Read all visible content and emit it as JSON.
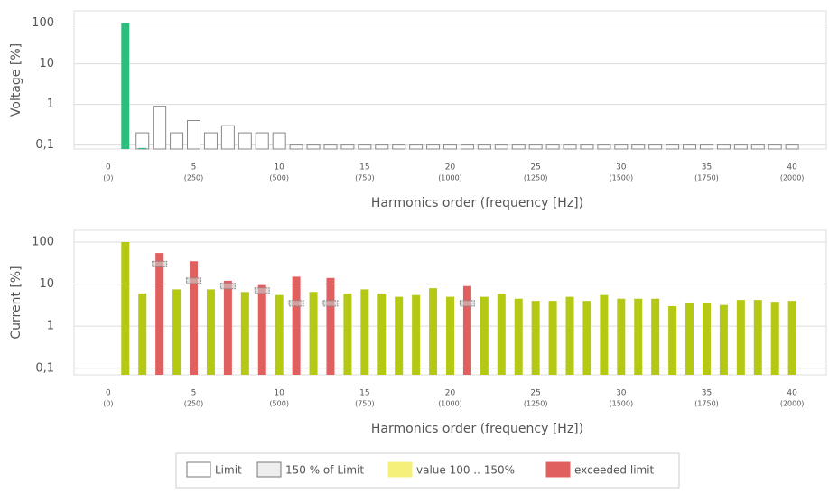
{
  "chart_data": [
    {
      "type": "bar",
      "log_scale": true,
      "grid": true,
      "y_label": "Voltage [%]",
      "x_label": "Harmonics order (frequency [Hz])",
      "x": [
        1,
        2,
        3,
        4,
        5,
        6,
        7,
        8,
        9,
        10,
        11,
        12,
        13,
        14,
        15,
        16,
        17,
        18,
        19,
        20,
        21,
        22,
        23,
        24,
        25,
        26,
        27,
        28,
        29,
        30,
        31,
        32,
        33,
        34,
        35,
        36,
        37,
        38,
        39,
        40
      ],
      "series": [
        {
          "color": "#ffffff",
          "style": "outline",
          "values": [
            null,
            0.2,
            0.9,
            0.2,
            0.4,
            0.2,
            0.3,
            0.2,
            0.2,
            0.2,
            0.1,
            0.1,
            0.1,
            0.1,
            0.1,
            0.1,
            0.1,
            0.1,
            0.1,
            0.1,
            0.1,
            0.1,
            0.1,
            0.1,
            0.1,
            0.1,
            0.1,
            0.1,
            0.1,
            0.1,
            0.1,
            0.1,
            0.1,
            0.1,
            0.1,
            0.1,
            0.1,
            0.1,
            0.1,
            0.1
          ]
        },
        {
          "color": "#2dbd7e",
          "values": [
            100,
            0.085,
            null,
            null,
            null,
            null,
            null,
            null,
            null,
            null,
            null,
            null,
            null,
            null,
            null,
            null,
            null,
            null,
            null,
            null,
            null,
            null,
            null,
            null,
            null,
            null,
            null,
            null,
            null,
            null,
            null,
            null,
            null,
            null,
            null,
            null,
            null,
            null,
            null,
            null
          ]
        }
      ],
      "xlim": [
        -2,
        42
      ],
      "xticks": [
        0,
        5,
        10,
        15,
        20,
        25,
        30,
        35,
        40
      ],
      "xtick_freqs": [
        "(0)",
        "(250)",
        "(500)",
        "(750)",
        "(1000)",
        "(1250)",
        "(1500)",
        "(1750)",
        "(2000)"
      ],
      "ylim": [
        0.08,
        200
      ],
      "yticks": [
        {
          "value": 0.1,
          "label": "0,1"
        },
        1,
        10,
        100
      ]
    },
    {
      "type": "bar",
      "log_scale": true,
      "grid": true,
      "y_label": "Current [%]",
      "x_label": "Harmonics order (frequency [Hz])",
      "x": [
        1,
        2,
        3,
        4,
        5,
        6,
        7,
        8,
        9,
        10,
        11,
        12,
        13,
        14,
        15,
        16,
        17,
        18,
        19,
        20,
        21,
        22,
        23,
        24,
        25,
        26,
        27,
        28,
        29,
        30,
        31,
        32,
        33,
        34,
        35,
        36,
        37,
        38,
        39,
        40
      ],
      "series": [
        {
          "color": "#b4c814",
          "values": [
            100,
            6,
            null,
            7.5,
            null,
            7.5,
            null,
            6.5,
            null,
            5.5,
            null,
            6.5,
            null,
            6,
            7.5,
            6,
            5,
            5.5,
            8,
            5,
            null,
            5,
            6,
            4.5,
            4,
            4,
            5,
            4,
            5.5,
            4.5,
            4.5,
            4.5,
            3,
            3.5,
            3.5,
            3.2,
            4.2,
            4.2,
            3.8,
            4
          ]
        },
        {
          "color": "#e06060",
          "values": [
            null,
            null,
            55,
            null,
            35,
            null,
            12,
            null,
            9.5,
            null,
            15,
            null,
            14,
            null,
            null,
            null,
            null,
            null,
            null,
            null,
            9,
            null,
            null,
            null,
            null,
            null,
            null,
            null,
            null,
            null,
            null,
            null,
            null,
            null,
            null,
            null,
            null,
            null,
            null,
            null
          ]
        },
        {
          "color": "#cccccc",
          "style": "marker",
          "values": [
            null,
            null,
            30,
            null,
            12,
            null,
            9,
            null,
            7,
            null,
            3.5,
            null,
            3.5,
            null,
            null,
            null,
            null,
            null,
            null,
            null,
            3.5,
            null,
            null,
            null,
            null,
            null,
            null,
            null,
            null,
            null,
            null,
            null,
            null,
            null,
            null,
            null,
            null,
            null,
            null,
            null
          ]
        }
      ],
      "xlim": [
        -2,
        42
      ],
      "xticks": [
        0,
        5,
        10,
        15,
        20,
        25,
        30,
        35,
        40
      ],
      "xtick_freqs": [
        "(0)",
        "(250)",
        "(500)",
        "(750)",
        "(1000)",
        "(1250)",
        "(1500)",
        "(1750)",
        "(2000)"
      ],
      "ylim": [
        0.07,
        190
      ],
      "yticks": [
        {
          "value": 0.1,
          "label": "0,1"
        },
        1,
        10,
        100
      ]
    }
  ],
  "legend": [
    {
      "name": "Limit",
      "color": "#ffffff"
    },
    {
      "name": "150 % of Limit",
      "color": "#eeeeee"
    },
    {
      "name": "value 100 .. 150%",
      "color": "#f5f07a"
    },
    {
      "name": "exceeded limit",
      "color": "#e06060"
    }
  ]
}
